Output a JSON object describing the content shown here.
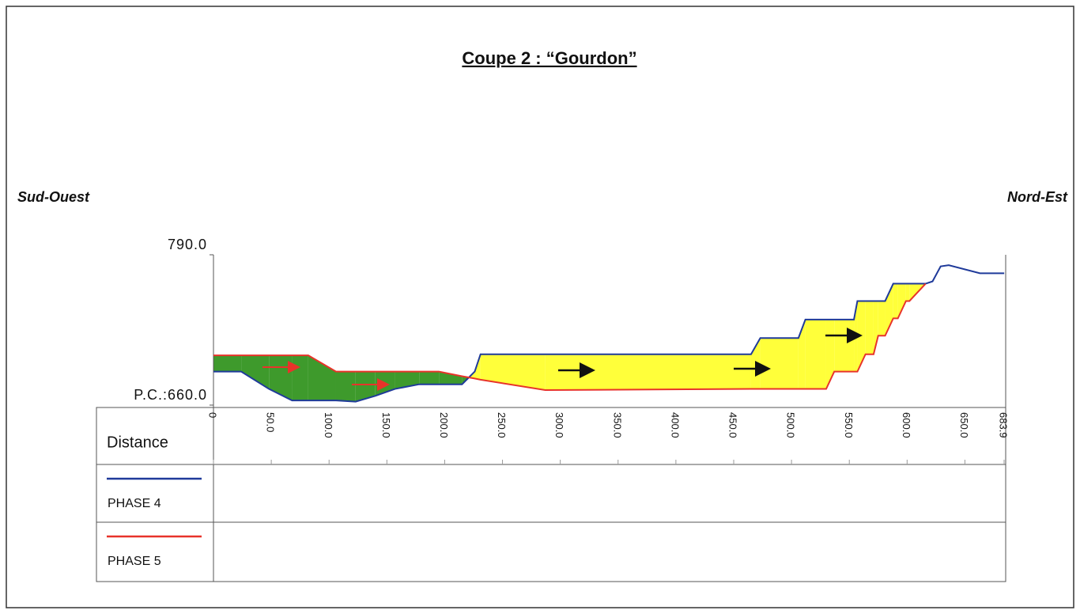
{
  "chart_data": {
    "type": "line",
    "title": "Coupe 2 : “Gourdon”",
    "left_label": "Sud-Ouest",
    "right_label": "Nord-Est",
    "xlabel": "Distance",
    "xlim": [
      0,
      683.9
    ],
    "ylim": [
      660,
      790
    ],
    "yticks": [
      {
        "value": 790,
        "label": "790.0"
      },
      {
        "value": 660,
        "label": "P.C.:660.0"
      }
    ],
    "xticks": [
      0,
      {
        "value": 50,
        "label": "50.0"
      },
      {
        "value": 100,
        "label": "100.0"
      },
      {
        "value": 150,
        "label": "150.0"
      },
      {
        "value": 200,
        "label": "200.0"
      },
      {
        "value": 250,
        "label": "250.0"
      },
      {
        "value": 300,
        "label": "300.0"
      },
      {
        "value": 350,
        "label": "350.0"
      },
      {
        "value": 400,
        "label": "400.0"
      },
      {
        "value": 450,
        "label": "450.0"
      },
      {
        "value": 500,
        "label": "500.0"
      },
      {
        "value": 550,
        "label": "550.0"
      },
      {
        "value": 600,
        "label": "600.0"
      },
      {
        "value": 650,
        "label": "650.0"
      },
      {
        "value": 683.9,
        "label": "683.9"
      }
    ],
    "x": [
      0,
      24,
      48,
      68,
      82,
      106,
      123,
      140,
      157,
      178,
      195,
      215,
      226,
      231,
      287,
      465,
      473,
      506,
      512,
      530,
      537,
      554,
      557,
      564,
      571,
      575,
      581,
      588,
      592,
      599,
      602,
      616,
      622,
      629,
      636,
      663,
      684
    ],
    "series": [
      {
        "name": "PHASE 4",
        "color": "#1f3a9a",
        "values": [
          689,
          689,
          674,
          664,
          664,
          664,
          663,
          668,
          674,
          678,
          678,
          678,
          689,
          704,
          704,
          704,
          718,
          718,
          734,
          734,
          734,
          734,
          750,
          750,
          750,
          750,
          750,
          765,
          765,
          765,
          765,
          765,
          767,
          780,
          781,
          774,
          774
        ]
      },
      {
        "name": "PHASE 5",
        "color": "#e8332a",
        "values": [
          703,
          703,
          703,
          703,
          703,
          689,
          689,
          689,
          689,
          689,
          689,
          685,
          683,
          682,
          673,
          674,
          674,
          674,
          674,
          674,
          689,
          689,
          689,
          704,
          704,
          720,
          720,
          735,
          735,
          750,
          750,
          765,
          null,
          null,
          null,
          null,
          null
        ]
      }
    ]
  }
}
